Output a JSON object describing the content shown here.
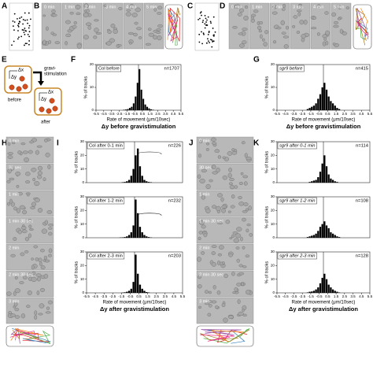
{
  "panel_labels": [
    "A",
    "B",
    "C",
    "D",
    "E",
    "F",
    "G",
    "H",
    "I",
    "J",
    "K"
  ],
  "microscopy": {
    "B": [
      "0 min",
      "1 min",
      "2 min",
      "3 min",
      "4 min",
      "5 min"
    ],
    "D": [
      "0 min",
      "1 min",
      "2 min",
      "3 min",
      "4 min",
      "5 min"
    ],
    "H": [
      "0 min",
      "30 sec",
      "1 min",
      "1 min 30 sec",
      "2 min",
      "2 min 30 sec",
      "3 min"
    ],
    "J": [
      "0 min",
      "30 sec",
      "1 min",
      "1 min 30 sec",
      "2 min",
      "2 min 30 sec",
      "3 min"
    ]
  },
  "diagram": {
    "arrow_label": [
      "gravi-",
      "stimulation"
    ],
    "before": {
      "label": "before",
      "dx": "Δx",
      "dy": "Δy"
    },
    "after": {
      "label": "after",
      "dx": "Δx",
      "dy": "Δy"
    }
  },
  "captions": {
    "F": "Δy before gravistimulation",
    "G": "Δy before gravistimulation",
    "I": "Δy after gravistimulation",
    "K": "Δy after gravistimulation"
  },
  "chart_data": [
    {
      "type": "histogram",
      "title": "Col before",
      "n_label": "n=1707",
      "ylabel": "% of tracks",
      "xlabel": "Rate of movement (μm/10sec)",
      "color": "#000000",
      "bins": [
        -2,
        -1.75,
        -1.5,
        -1.25,
        -1,
        -0.75,
        -0.5,
        -0.25,
        0,
        0.25,
        0.5,
        0.75,
        1,
        1.25,
        1.5,
        1.75,
        2
      ],
      "values": [
        0.2,
        0.3,
        0.5,
        1,
        1.5,
        3,
        6,
        12,
        18,
        9,
        5,
        2.5,
        1.5,
        0.8,
        0.4,
        0.2
      ],
      "xlim": [
        -5.5,
        5.5
      ],
      "xticks": [
        -5.5,
        -4.5,
        -3.5,
        -2.5,
        -1.5,
        -0.5,
        0.5,
        1.5,
        2.5,
        3.5,
        4.5,
        5.5
      ],
      "ylim": [
        0,
        20
      ],
      "yticks": [
        0,
        10,
        20
      ]
    },
    {
      "type": "histogram",
      "title": "sgr9 before",
      "n_label": "n=415",
      "ylabel": "% of tracks",
      "xlabel": "Rate of movement (μm/10sec)",
      "color": "#000000",
      "bins": [
        -2,
        -1.75,
        -1.5,
        -1.25,
        -1,
        -0.75,
        -0.5,
        -0.25,
        0,
        0.25,
        0.5,
        0.75,
        1,
        1.25,
        1.5,
        1.75,
        2
      ],
      "values": [
        0.5,
        1,
        1.5,
        2,
        3,
        5,
        7,
        10,
        12,
        9,
        6,
        4,
        3,
        2,
        1,
        0.5
      ],
      "xlim": [
        -5.5,
        5.5
      ],
      "xticks": [
        -5.5,
        -4.5,
        -3.5,
        -2.5,
        -1.5,
        -0.5,
        0.5,
        1.5,
        2.5,
        3.5,
        4.5,
        5.5
      ],
      "ylim": [
        0,
        20
      ],
      "yticks": [
        0,
        10,
        20
      ]
    },
    {
      "type": "histogram",
      "title": "Col after 0-1 min",
      "n_label": "n=226",
      "ylabel": "% of tracks",
      "color": "#000000",
      "bins": [
        -2,
        -1.75,
        -1.5,
        -1.25,
        -1,
        -0.75,
        -0.5,
        -0.25,
        0,
        0.25,
        0.5,
        0.75,
        1,
        1.25,
        1.5,
        1.75,
        2
      ],
      "values": [
        0,
        0,
        0.3,
        0.5,
        1,
        2,
        5,
        10,
        20,
        25,
        12,
        5,
        2,
        1,
        0.5,
        0.3
      ],
      "xlim": [
        -5.5,
        5.5
      ],
      "ylim": [
        0,
        30
      ],
      "yticks": [
        0,
        10,
        20,
        30
      ]
    },
    {
      "type": "histogram",
      "title": "Col after 1-2 min",
      "n_label": "n=232",
      "ylabel": "% of tracks",
      "color": "#000000",
      "bins": [
        -2,
        -1.75,
        -1.5,
        -1.25,
        -1,
        -0.75,
        -0.5,
        -0.25,
        0,
        0.25,
        0.5,
        0.75,
        1,
        1.25,
        1.5,
        1.75,
        2
      ],
      "values": [
        0,
        0.2,
        0.3,
        0.5,
        1,
        2,
        4,
        9,
        28,
        18,
        8,
        4,
        2,
        1,
        0.5,
        0.2
      ],
      "xlim": [
        -5.5,
        5.5
      ],
      "ylim": [
        0,
        30
      ],
      "yticks": [
        0,
        10,
        20,
        30
      ]
    },
    {
      "type": "histogram",
      "title": "Col after 2-3 min",
      "n_label": "n=203",
      "ylabel": "% of tracks",
      "xlabel": "Rate of movement (μm/10sec)",
      "color": "#000000",
      "bins": [
        -2,
        -1.75,
        -1.5,
        -1.25,
        -1,
        -0.75,
        -0.5,
        -0.25,
        0,
        0.25,
        0.5,
        0.75,
        1,
        1.25,
        1.5,
        1.75,
        2
      ],
      "values": [
        0,
        0,
        0.2,
        0.4,
        0.8,
        1.5,
        3,
        8,
        28,
        14,
        6,
        3,
        1.5,
        0.6,
        0.3,
        0
      ],
      "xlim": [
        -5.5,
        5.5
      ],
      "xticks": [
        -5.5,
        -4.5,
        -3.5,
        -2.5,
        -1.5,
        -0.5,
        0.5,
        1.5,
        2.5,
        3.5,
        4.5,
        5.5
      ],
      "ylim": [
        0,
        30
      ],
      "yticks": [
        0,
        10,
        20,
        30
      ]
    },
    {
      "type": "histogram",
      "title": "sgr9 after 0-1 min",
      "n_label": "n=114",
      "ylabel": "% of tracks",
      "color": "#000000",
      "bins": [
        -2,
        -1.75,
        -1.5,
        -1.25,
        -1,
        -0.75,
        -0.5,
        -0.25,
        0,
        0.25,
        0.5,
        0.75,
        1,
        1.25,
        1.5,
        1.75,
        2
      ],
      "values": [
        0,
        0.5,
        1,
        1.5,
        2,
        4,
        8,
        14,
        20,
        12,
        6,
        3,
        2,
        1,
        0.5,
        0
      ],
      "xlim": [
        -5.5,
        5.5
      ],
      "ylim": [
        0,
        30
      ],
      "yticks": [
        0,
        10,
        20,
        30
      ]
    },
    {
      "type": "histogram",
      "title": "sgr9 after 1-2 min",
      "n_label": "n=108",
      "ylabel": "% of tracks",
      "color": "#000000",
      "bins": [
        -2,
        -1.75,
        -1.5,
        -1.25,
        -1,
        -0.75,
        -0.5,
        -0.25,
        0,
        0.25,
        0.5,
        0.75,
        1,
        1.25,
        1.5,
        1.75,
        2
      ],
      "values": [
        0.5,
        1,
        1.5,
        2,
        3,
        5,
        8,
        10,
        12,
        9,
        7,
        4,
        3,
        2,
        1,
        0.5
      ],
      "xlim": [
        -5.5,
        5.5
      ],
      "ylim": [
        0,
        30
      ],
      "yticks": [
        0,
        10,
        20,
        30
      ]
    },
    {
      "type": "histogram",
      "title": "sgr9 after 2-3 min",
      "n_label": "n=128",
      "ylabel": "% of tracks",
      "xlabel": "Rate of movement (μm/10sec)",
      "color": "#000000",
      "bins": [
        -2,
        -1.75,
        -1.5,
        -1.25,
        -1,
        -0.75,
        -0.5,
        -0.25,
        0,
        0.25,
        0.5,
        0.75,
        1,
        1.25,
        1.5,
        1.75,
        2
      ],
      "values": [
        0.3,
        0.8,
        1,
        1.5,
        2.5,
        4,
        7,
        11,
        14,
        10,
        6,
        4,
        2.5,
        1.5,
        0.8,
        0.3
      ],
      "xlim": [
        -5.5,
        5.5
      ],
      "xticks": [
        -5.5,
        -4.5,
        -3.5,
        -2.5,
        -1.5,
        -0.5,
        0.5,
        1.5,
        2.5,
        3.5,
        4.5,
        5.5
      ],
      "ylim": [
        0,
        30
      ],
      "yticks": [
        0,
        10,
        20,
        30
      ]
    }
  ]
}
